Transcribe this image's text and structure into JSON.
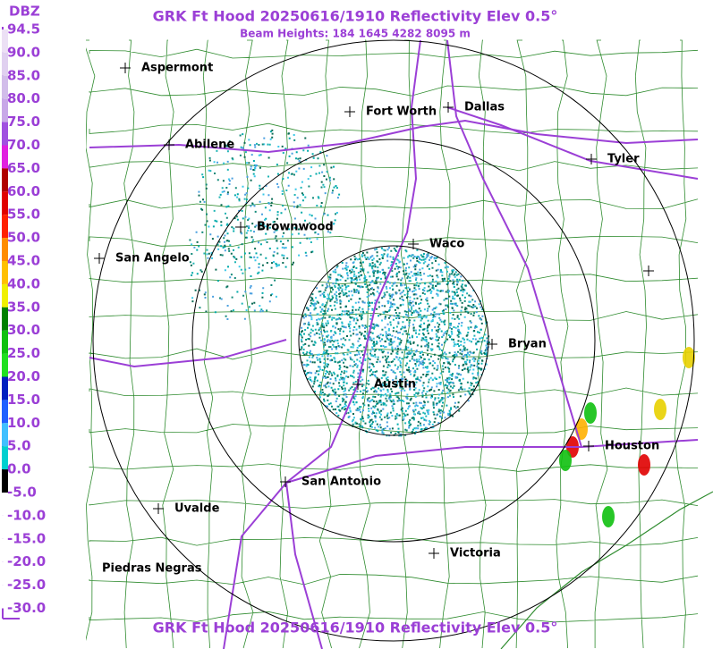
{
  "header": {
    "title": "GRK Ft Hood 20250616/1910 Reflectivity Elev 0.5°",
    "subtitle": "Beam Heights: 184 1645 4282 8095 m"
  },
  "legend": {
    "title": "DBZ",
    "labels": [
      "94.5",
      "90.0",
      "85.0",
      "80.0",
      "75.0",
      "70.0",
      "65.0",
      "60.0",
      "55.0",
      "50.0",
      "45.0",
      "40.0",
      "35.0",
      "30.0",
      "25.0",
      "20.0",
      "15.0",
      "10.0",
      "5.0",
      "0.0",
      "-5.0",
      "-10.0",
      "-15.0",
      "-20.0",
      "-25.0",
      "-30.0"
    ]
  },
  "cities": [
    "Aspermont",
    "Fort Worth",
    "Dallas",
    "Abilene",
    "Tyler",
    "Brownwood",
    "Waco",
    "San Angelo",
    "Bryan",
    "Austin",
    "Houston",
    "San Antonio",
    "Uvalde",
    "Victoria",
    "Piedras Negras"
  ],
  "footer": {
    "title": "GRK Ft Hood 20250616/1910 Reflectivity Elev 0.5°"
  }
}
